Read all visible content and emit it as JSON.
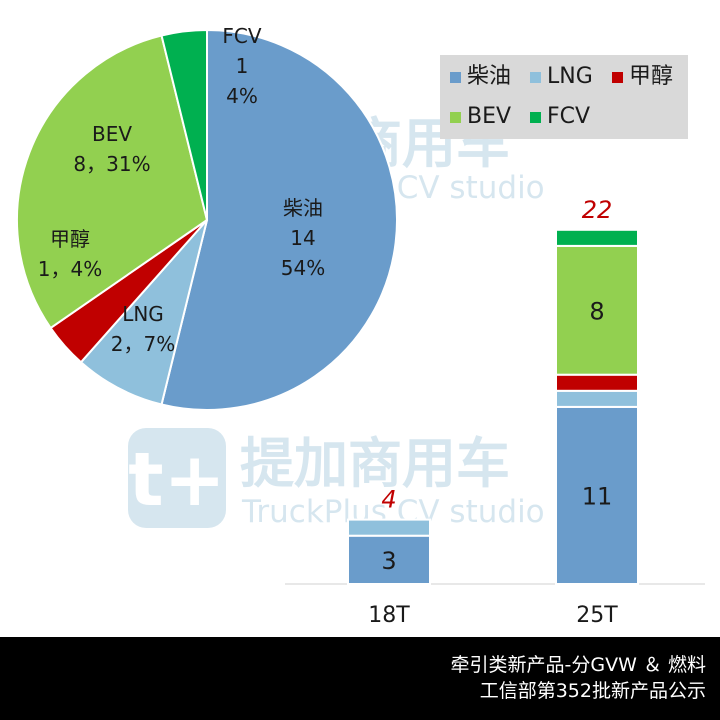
{
  "watermark": {
    "brand_cn": "提加商用车",
    "brand_en": "TruckPlus CV studio"
  },
  "legend": {
    "items": [
      {
        "label": "柴油",
        "color": "#6a9ccb"
      },
      {
        "label": "LNG",
        "color": "#8fc0dc"
      },
      {
        "label": "甲醇",
        "color": "#c00000"
      },
      {
        "label": "BEV",
        "color": "#92d050"
      },
      {
        "label": "FCV",
        "color": "#00b050"
      }
    ]
  },
  "chart_data": [
    {
      "type": "pie",
      "slices": [
        {
          "name": "柴油",
          "value": 14,
          "percent": "54%",
          "label_lines": [
            "柴油",
            "14",
            "54%"
          ],
          "color": "#6a9ccb"
        },
        {
          "name": "LNG",
          "value": 2,
          "percent": "7%",
          "label_lines": [
            "LNG",
            "2，7%"
          ],
          "color": "#8fc0dc"
        },
        {
          "name": "甲醇",
          "value": 1,
          "percent": "4%",
          "label_lines": [
            "甲醇",
            "1，4%"
          ],
          "color": "#c00000"
        },
        {
          "name": "BEV",
          "value": 8,
          "percent": "31%",
          "label_lines": [
            "BEV",
            "8，31%"
          ],
          "color": "#92d050"
        },
        {
          "name": "FCV",
          "value": 1,
          "percent": "4%",
          "label_lines": [
            "FCV",
            "1",
            "4%"
          ],
          "color": "#00b050"
        }
      ]
    },
    {
      "type": "bar",
      "stacked": true,
      "categories": [
        "18T",
        "25T"
      ],
      "totals": [
        "4",
        "22"
      ],
      "series": [
        {
          "name": "柴油",
          "values": [
            3,
            11
          ],
          "color": "#6a9ccb",
          "labels": [
            "3",
            "11"
          ]
        },
        {
          "name": "LNG",
          "values": [
            1,
            1
          ],
          "color": "#8fc0dc",
          "labels": [
            "",
            ""
          ]
        },
        {
          "name": "甲醇",
          "values": [
            0,
            1
          ],
          "color": "#c00000",
          "labels": [
            "",
            ""
          ]
        },
        {
          "name": "BEV",
          "values": [
            0,
            8
          ],
          "color": "#92d050",
          "labels": [
            "",
            "8"
          ]
        },
        {
          "name": "FCV",
          "values": [
            0,
            1
          ],
          "color": "#00b050",
          "labels": [
            "",
            ""
          ]
        }
      ]
    }
  ],
  "footer": {
    "line1": "牵引类新产品-分GVW ＆ 燃料",
    "line2": "工信部第352批新产品公示"
  }
}
